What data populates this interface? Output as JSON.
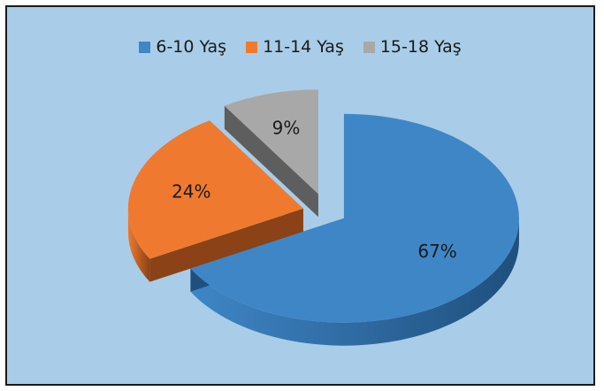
{
  "chart_data": {
    "type": "pie",
    "title": "",
    "categories": [
      "6-10 Yaş",
      "11-14 Yaş",
      "15-18 Yaş"
    ],
    "values": [
      67,
      24,
      9
    ],
    "labels": [
      "67%",
      "24%",
      "9%"
    ],
    "colors": [
      "#3f86c6",
      "#ef7a2f",
      "#a8a8a8"
    ],
    "side_colors": [
      "#1f4f7d",
      "#8a4216",
      "#5e5e5e"
    ],
    "legend_position": "top",
    "style": "3d-exploded"
  }
}
